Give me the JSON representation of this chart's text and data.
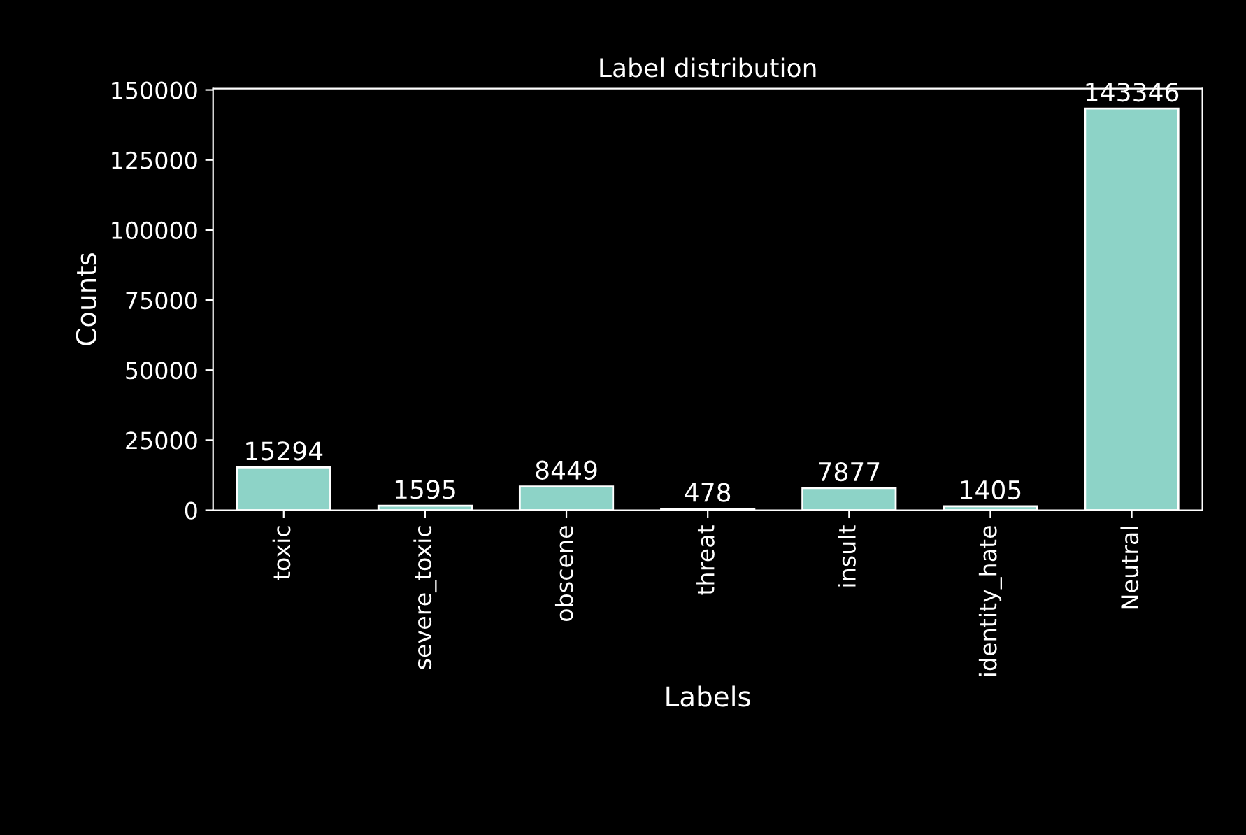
{
  "chart_data": {
    "type": "bar",
    "title": "Label distribution",
    "xlabel": "Labels",
    "ylabel": "Counts",
    "categories": [
      "toxic",
      "severe_toxic",
      "obscene",
      "threat",
      "insult",
      "identity_hate",
      "Neutral"
    ],
    "values": [
      15294,
      1595,
      8449,
      478,
      7877,
      1405,
      143346
    ],
    "color": "#8dd3c7",
    "ylim": [
      0,
      150500
    ],
    "yticks": [
      0,
      25000,
      50000,
      75000,
      100000,
      125000,
      150000
    ],
    "data_labels": true,
    "grid": false,
    "legend": false
  }
}
